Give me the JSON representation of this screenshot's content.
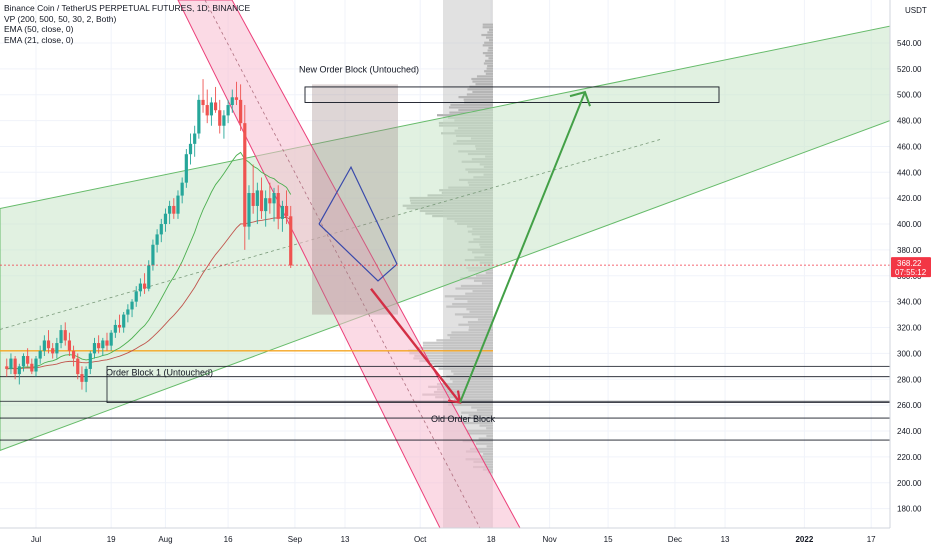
{
  "header": {
    "symbol_title": "Binance Coin / TetherUS PERPETUAL FUTURES, 1D, BINANCE",
    "indicators": [
      "VP (200, 500, 50, 30, 2, Both)",
      "EMA (50, close, 0)",
      "EMA (21, close, 0)"
    ]
  },
  "currency": "USDT",
  "price_badge": {
    "price": "368.22",
    "countdown": "07:55:12",
    "color": "#f23645"
  },
  "colors": {
    "up": "#26a69a",
    "down": "#ef5350",
    "channel_green": "#c8e6c9",
    "channel_pink": "#f8bbd0",
    "arrow_green": "#43a047",
    "arrow_red": "#d32f45",
    "wedge_blue": "#3949ab",
    "orange_line": "#f5a623",
    "ema50": "#c0554d",
    "ema21": "#4caf50",
    "volume_profile": "#9e9e9e"
  },
  "annotations": {
    "new_ob": "New Order Block (Untouched)",
    "ob1": "Order Block 1 (Untouched)",
    "old_ob": "Old Order Block"
  },
  "chart_data": {
    "type": "candlestick",
    "title": "Binance Coin / TetherUS PERPETUAL FUTURES, 1D, BINANCE",
    "y_axis": {
      "unit": "USDT",
      "range": [
        165,
        555
      ],
      "ticks": [
        "540.00",
        "520.00",
        "500.00",
        "480.00",
        "460.00",
        "440.00",
        "420.00",
        "400.00",
        "380.00",
        "360.00",
        "340.00",
        "320.00",
        "300.00",
        "280.00",
        "260.00",
        "240.00",
        "220.00",
        "200.00",
        "180.00"
      ]
    },
    "x_axis": {
      "ticks": [
        {
          "label": "Jul",
          "date": "2021-07-01"
        },
        {
          "label": "19",
          "date": "2021-07-19"
        },
        {
          "label": "Aug",
          "date": "2021-08-01"
        },
        {
          "label": "16",
          "date": "2021-08-16"
        },
        {
          "label": "Sep",
          "date": "2021-09-01"
        },
        {
          "label": "13",
          "date": "2021-09-13"
        },
        {
          "label": "Oct",
          "date": "2021-10-01"
        },
        {
          "label": "18",
          "date": "2021-10-18"
        },
        {
          "label": "Nov",
          "date": "2021-11-01"
        },
        {
          "label": "15",
          "date": "2021-11-15"
        },
        {
          "label": "Dec",
          "date": "2021-12-01"
        },
        {
          "label": "13",
          "date": "2021-12-13"
        },
        {
          "label": "2022",
          "date": "2022-01-01",
          "bold": true
        },
        {
          "label": "17",
          "date": "2022-01-17"
        }
      ]
    },
    "ohlc_start": "2021-06-24",
    "ohlc": [
      [
        290,
        296,
        282,
        288
      ],
      [
        288,
        300,
        284,
        296
      ],
      [
        296,
        298,
        280,
        284
      ],
      [
        284,
        292,
        276,
        290
      ],
      [
        290,
        300,
        286,
        298
      ],
      [
        298,
        304,
        290,
        292
      ],
      [
        292,
        296,
        284,
        286
      ],
      [
        286,
        298,
        282,
        296
      ],
      [
        296,
        306,
        292,
        302
      ],
      [
        302,
        314,
        298,
        310
      ],
      [
        310,
        318,
        300,
        304
      ],
      [
        304,
        308,
        296,
        300
      ],
      [
        300,
        312,
        296,
        308
      ],
      [
        308,
        322,
        304,
        318
      ],
      [
        318,
        324,
        306,
        310
      ],
      [
        310,
        316,
        298,
        302
      ],
      [
        302,
        306,
        290,
        296
      ],
      [
        296,
        300,
        280,
        284
      ],
      [
        284,
        290,
        272,
        278
      ],
      [
        278,
        290,
        270,
        288
      ],
      [
        288,
        302,
        284,
        300
      ],
      [
        300,
        312,
        296,
        308
      ],
      [
        308,
        314,
        300,
        304
      ],
      [
        304,
        312,
        298,
        310
      ],
      [
        310,
        316,
        302,
        306
      ],
      [
        306,
        318,
        302,
        316
      ],
      [
        316,
        326,
        312,
        322
      ],
      [
        322,
        330,
        316,
        320
      ],
      [
        320,
        332,
        316,
        330
      ],
      [
        330,
        338,
        324,
        334
      ],
      [
        334,
        342,
        328,
        340
      ],
      [
        340,
        352,
        336,
        348
      ],
      [
        348,
        358,
        344,
        354
      ],
      [
        354,
        362,
        346,
        350
      ],
      [
        350,
        372,
        348,
        368
      ],
      [
        368,
        388,
        364,
        384
      ],
      [
        384,
        396,
        378,
        392
      ],
      [
        392,
        404,
        386,
        400
      ],
      [
        400,
        412,
        394,
        408
      ],
      [
        408,
        418,
        400,
        414
      ],
      [
        414,
        420,
        404,
        408
      ],
      [
        408,
        426,
        404,
        422
      ],
      [
        422,
        436,
        416,
        432
      ],
      [
        432,
        458,
        428,
        454
      ],
      [
        454,
        470,
        446,
        462
      ],
      [
        462,
        476,
        452,
        470
      ],
      [
        470,
        500,
        466,
        496
      ],
      [
        496,
        512,
        486,
        492
      ],
      [
        492,
        504,
        478,
        484
      ],
      [
        484,
        498,
        476,
        494
      ],
      [
        494,
        506,
        486,
        488
      ],
      [
        488,
        496,
        470,
        476
      ],
      [
        476,
        488,
        466,
        484
      ],
      [
        484,
        496,
        478,
        492
      ],
      [
        492,
        504,
        486,
        498
      ],
      [
        498,
        510,
        492,
        496
      ],
      [
        496,
        508,
        472,
        478
      ],
      [
        478,
        492,
        380,
        398
      ],
      [
        398,
        430,
        388,
        424
      ],
      [
        424,
        446,
        408,
        414
      ],
      [
        414,
        432,
        400,
        426
      ],
      [
        426,
        436,
        404,
        410
      ],
      [
        410,
        426,
        398,
        420
      ],
      [
        420,
        432,
        408,
        416
      ],
      [
        416,
        428,
        402,
        424
      ],
      [
        424,
        430,
        396,
        404
      ],
      [
        404,
        418,
        394,
        414
      ],
      [
        414,
        426,
        400,
        406
      ],
      [
        406,
        414,
        366,
        368
      ]
    ],
    "levels": [
      {
        "name": "orange horizontal",
        "price": 302
      },
      {
        "name": "order block 1 top",
        "price": 290
      },
      {
        "name": "order block 1 bottom",
        "price": 262
      },
      {
        "name": "old order block line 1",
        "price": 282
      },
      {
        "name": "old order block line 2",
        "price": 263
      },
      {
        "name": "old order block line 3",
        "price": 250
      },
      {
        "name": "old order block line 4",
        "price": 233
      },
      {
        "name": "new order block top",
        "price": 506
      },
      {
        "name": "new order block bottom",
        "price": 494
      }
    ],
    "projection_target_low": 262,
    "projection_target_high": 502
  }
}
